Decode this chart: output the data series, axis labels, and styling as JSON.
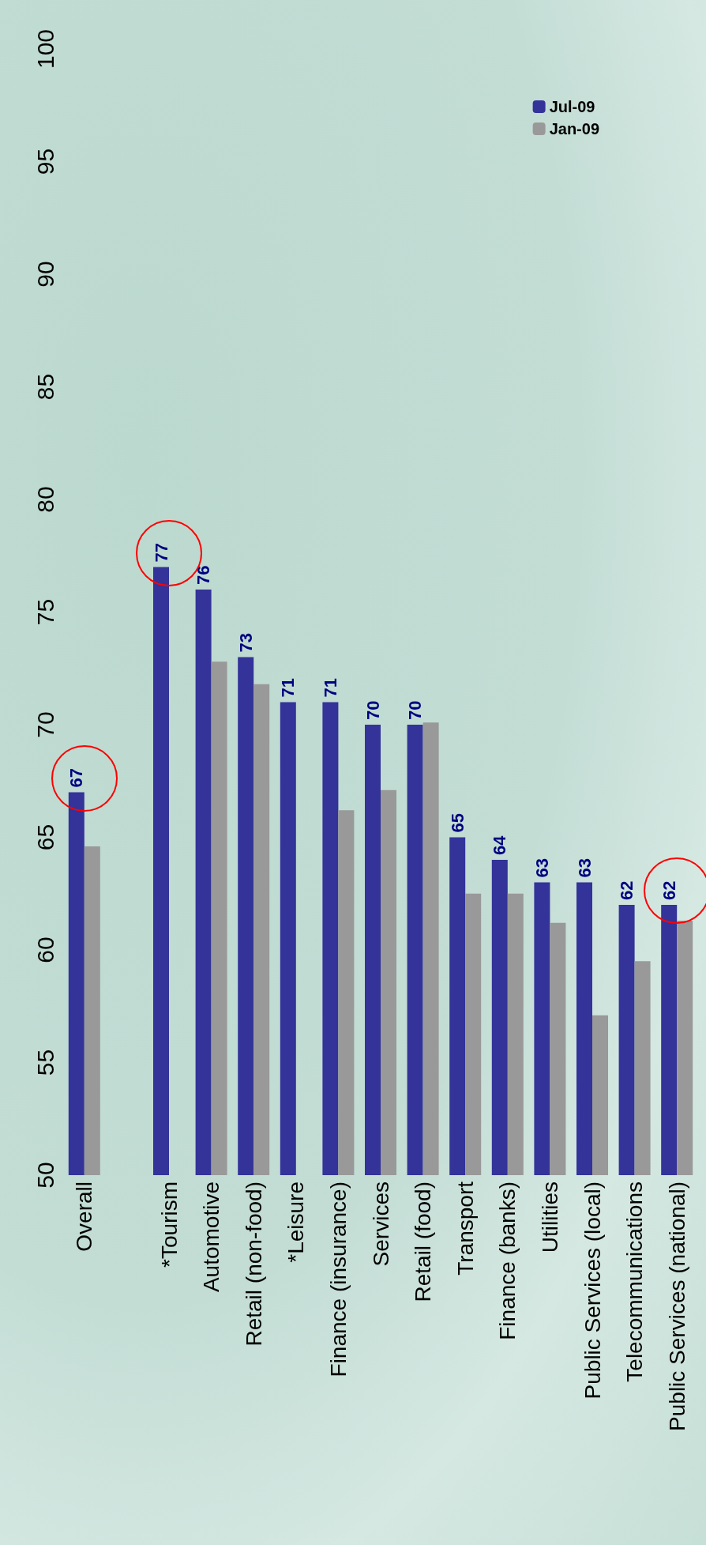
{
  "chart_data": {
    "type": "bar",
    "categories": [
      "Overall",
      null,
      "*Tourism",
      "Automotive",
      "Retail (non-food)",
      "*Leisure",
      "Finance (insurance)",
      "Services",
      "Retail (food)",
      "Transport",
      "Finance (banks)",
      "Utilities",
      "Public Services (local)",
      "Telecommunications",
      "Public Services (national)"
    ],
    "series": [
      {
        "name": "Jul-09",
        "color": "#333399",
        "values": [
          67,
          null,
          77,
          76,
          73,
          71,
          71,
          70,
          70,
          65,
          64,
          63,
          63,
          62,
          62
        ],
        "value_labels": [
          "67",
          null,
          "77",
          "76",
          "73",
          "71",
          "71",
          "70",
          "70",
          "65",
          "64",
          "63",
          "63",
          "62",
          "62"
        ]
      },
      {
        "name": "Jan-09",
        "color": "#999999",
        "values": [
          64.6,
          null,
          null,
          72.8,
          71.8,
          null,
          66.2,
          67.1,
          70.1,
          62.5,
          62.5,
          61.2,
          57.1,
          59.5,
          61.3
        ]
      }
    ],
    "ylim": [
      50,
      100
    ],
    "yticks": [
      50,
      55,
      60,
      65,
      70,
      75,
      80,
      85,
      90,
      95,
      100
    ],
    "grid": false,
    "legend": "top right"
  }
}
